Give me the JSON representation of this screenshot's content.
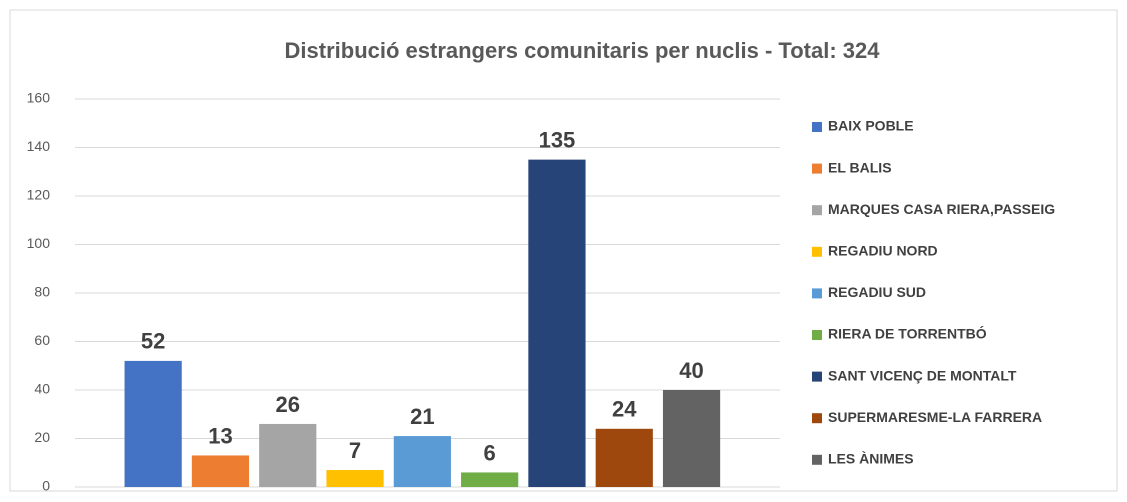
{
  "chart_data": {
    "type": "bar",
    "title": "Distribució estrangers comunitaris per nuclis - Total: 324",
    "categories": [
      "BAIX POBLE",
      "EL BALIS",
      "MARQUES CASA RIERA,PASSEIG",
      "REGADIU NORD",
      "REGADIU SUD",
      "RIERA DE TORRENTBÓ",
      "SANT VICENÇ DE MONTALT",
      "SUPERMARESME-LA FARRERA",
      "LES ÀNIMES"
    ],
    "values": [
      52,
      13,
      26,
      7,
      21,
      6,
      135,
      24,
      40
    ],
    "colors": [
      "#4472c4",
      "#ed7d31",
      "#a5a5a5",
      "#ffc000",
      "#5b9bd5",
      "#70ad47",
      "#264478",
      "#9e480e",
      "#636363"
    ],
    "ylim": [
      0,
      160
    ],
    "yticks": [
      0,
      20,
      40,
      60,
      80,
      100,
      120,
      140,
      160
    ],
    "grid": true,
    "legend": "right"
  }
}
